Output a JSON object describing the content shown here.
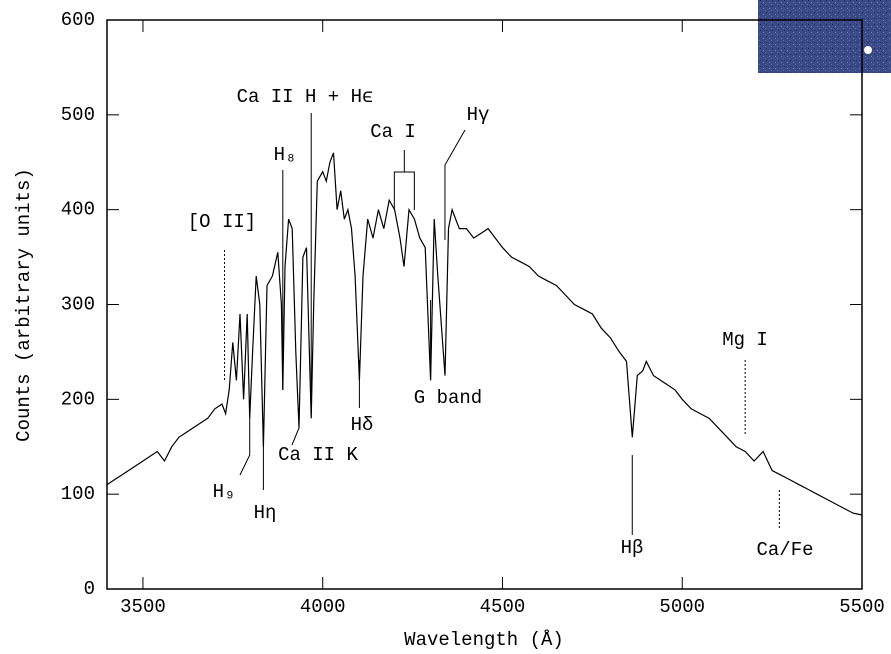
{
  "chart_data": {
    "type": "line",
    "xlabel": "Wavelength (Å)",
    "ylabel": "Counts (arbitrary units)",
    "xlim": [
      3400,
      5500
    ],
    "xticks": [
      3500,
      4000,
      4500,
      5000,
      5500
    ],
    "ylim": [
      0,
      600
    ],
    "yticks": [
      0,
      100,
      200,
      300,
      400,
      500,
      600
    ],
    "series": [
      {
        "color": "#000000",
        "x": [
          3400,
          3420,
          3440,
          3460,
          3480,
          3500,
          3520,
          3540,
          3560,
          3580,
          3600,
          3620,
          3640,
          3660,
          3680,
          3700,
          3720,
          3730,
          3740,
          3750,
          3760,
          3770,
          3780,
          3790,
          3797,
          3805,
          3815,
          3825,
          3835,
          3845,
          3860,
          3875,
          3885,
          3889,
          3895,
          3905,
          3915,
          3925,
          3934,
          3945,
          3955,
          3968,
          3975,
          3985,
          4000,
          4010,
          4020,
          4030,
          4040,
          4050,
          4060,
          4070,
          4080,
          4090,
          4102,
          4112,
          4125,
          4140,
          4155,
          4170,
          4185,
          4200,
          4215,
          4226,
          4240,
          4255,
          4270,
          4285,
          4300,
          4310,
          4320,
          4340,
          4350,
          4360,
          4380,
          4400,
          4420,
          4440,
          4460,
          4480,
          4500,
          4525,
          4550,
          4575,
          4600,
          4625,
          4650,
          4675,
          4700,
          4725,
          4750,
          4775,
          4800,
          4825,
          4845,
          4861,
          4875,
          4890,
          4900,
          4920,
          4940,
          4960,
          4980,
          5000,
          5025,
          5050,
          5075,
          5100,
          5125,
          5150,
          5175,
          5200,
          5225,
          5250,
          5275,
          5300,
          5325,
          5350,
          5375,
          5400,
          5425,
          5450,
          5475,
          5500
        ],
        "values": [
          110,
          115,
          120,
          125,
          130,
          135,
          140,
          145,
          135,
          150,
          160,
          165,
          170,
          175,
          180,
          190,
          195,
          185,
          210,
          260,
          220,
          290,
          200,
          290,
          180,
          250,
          330,
          300,
          150,
          320,
          330,
          355,
          300,
          210,
          340,
          390,
          380,
          250,
          170,
          350,
          360,
          180,
          300,
          430,
          440,
          430,
          450,
          460,
          400,
          420,
          390,
          400,
          380,
          330,
          220,
          330,
          390,
          370,
          400,
          380,
          410,
          400,
          370,
          340,
          400,
          390,
          370,
          360,
          220,
          390,
          330,
          225,
          380,
          400,
          380,
          380,
          370,
          375,
          380,
          370,
          360,
          350,
          345,
          340,
          330,
          325,
          320,
          310,
          300,
          295,
          290,
          275,
          265,
          250,
          240,
          160,
          225,
          230,
          240,
          225,
          220,
          215,
          210,
          200,
          190,
          185,
          180,
          170,
          160,
          150,
          145,
          135,
          145,
          125,
          120,
          115,
          110,
          105,
          100,
          95,
          90,
          85,
          80,
          78
        ]
      }
    ],
    "annotations": [
      {
        "label": "[O II]",
        "x": 3727,
        "dotted": true
      },
      {
        "label": "Ca II H + Hϵ",
        "x": 3968
      },
      {
        "label": "H₈",
        "x": 3889
      },
      {
        "label": "Ca I",
        "x": 4227
      },
      {
        "label": "Hγ",
        "x": 4340
      },
      {
        "label": "Hδ",
        "x": 4102
      },
      {
        "label": "G band",
        "x": 4300
      },
      {
        "label": "Ca II K",
        "x": 3934
      },
      {
        "label": "H₉",
        "x": 3797
      },
      {
        "label": "Hη",
        "x": 3835
      },
      {
        "label": "Hβ",
        "x": 4861
      },
      {
        "label": "Mg I",
        "x": 5175,
        "dotted": true
      },
      {
        "label": "Ca/Fe",
        "x": 5270,
        "dotted": true
      }
    ]
  }
}
